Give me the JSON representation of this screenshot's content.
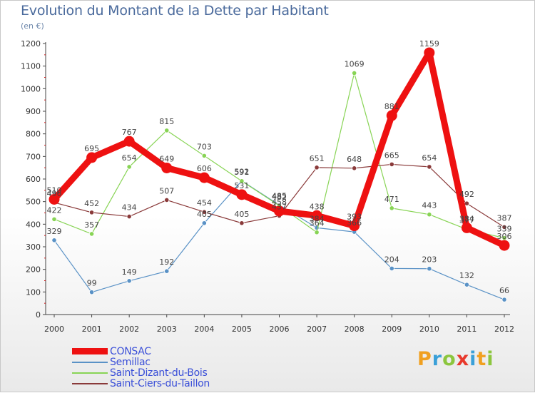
{
  "title": "Evolution du Montant de la Dette par Habitant",
  "unit_label": "(en €)",
  "logo": {
    "text": "Proxiti",
    "letters": [
      {
        "ch": "P",
        "color": "#f0a020"
      },
      {
        "ch": "r",
        "color": "#3aa0d8"
      },
      {
        "ch": "o",
        "color": "#8cc63e"
      },
      {
        "ch": "x",
        "color": "#e8392c"
      },
      {
        "ch": "i",
        "color": "#3aa0d8"
      },
      {
        "ch": "t",
        "color": "#f0a020"
      },
      {
        "ch": "i",
        "color": "#8cc63e"
      }
    ]
  },
  "chart_data": {
    "type": "line",
    "title": "Evolution du Montant de la Dette par Habitant",
    "ylabel": "(en €)",
    "xlabel": "",
    "x": [
      "2000",
      "2001",
      "2002",
      "2003",
      "2004",
      "2005",
      "2006",
      "2007",
      "2008",
      "2009",
      "2010",
      "2011",
      "2012"
    ],
    "ylim": [
      0,
      1200
    ],
    "yticks": [
      0,
      100,
      200,
      300,
      400,
      500,
      600,
      700,
      800,
      900,
      1000,
      1100,
      1200
    ],
    "grid": false,
    "legend_position": "bottom-left",
    "series": [
      {
        "name": "CONSAC",
        "color": "#ee1111",
        "emphasis": true,
        "values": [
          510,
          695,
          767,
          649,
          606,
          531,
          458,
          438,
          393,
          881,
          1159,
          384,
          306
        ],
        "labels": [
          "510",
          "695",
          "767",
          "649",
          "606",
          "531",
          "458",
          "438",
          "393",
          "881",
          "1159",
          "384",
          "306"
        ]
      },
      {
        "name": "Semillac",
        "color": "#5a92c6",
        "values": [
          329,
          99,
          149,
          192,
          405,
          592,
          485,
          384,
          366,
          204,
          203,
          132,
          66
        ],
        "labels": [
          "329",
          "99",
          "149",
          "192",
          "405",
          "592",
          "485",
          "384",
          "366",
          "204",
          "203",
          "132",
          "66"
        ]
      },
      {
        "name": "Saint-Dizant-du-Bois",
        "color": "#88d455",
        "values": [
          422,
          357,
          654,
          815,
          703,
          591,
          482,
          364,
          1069,
          471,
          443,
          377,
          339
        ],
        "labels": [
          "422",
          "357",
          "654",
          "815",
          "703",
          "591",
          "482",
          "364",
          "1069",
          "471",
          "443",
          "377",
          "339"
        ]
      },
      {
        "name": "Saint-Ciers-du-Taillon",
        "color": "#8a3a3a",
        "values": [
          496,
          452,
          434,
          507,
          454,
          405,
          437,
          651,
          648,
          665,
          654,
          492,
          387
        ],
        "labels": [
          "496",
          "452",
          "434",
          "507",
          "454",
          "405",
          "437",
          "651",
          "648",
          "665",
          "654",
          "492",
          "387"
        ]
      }
    ]
  }
}
